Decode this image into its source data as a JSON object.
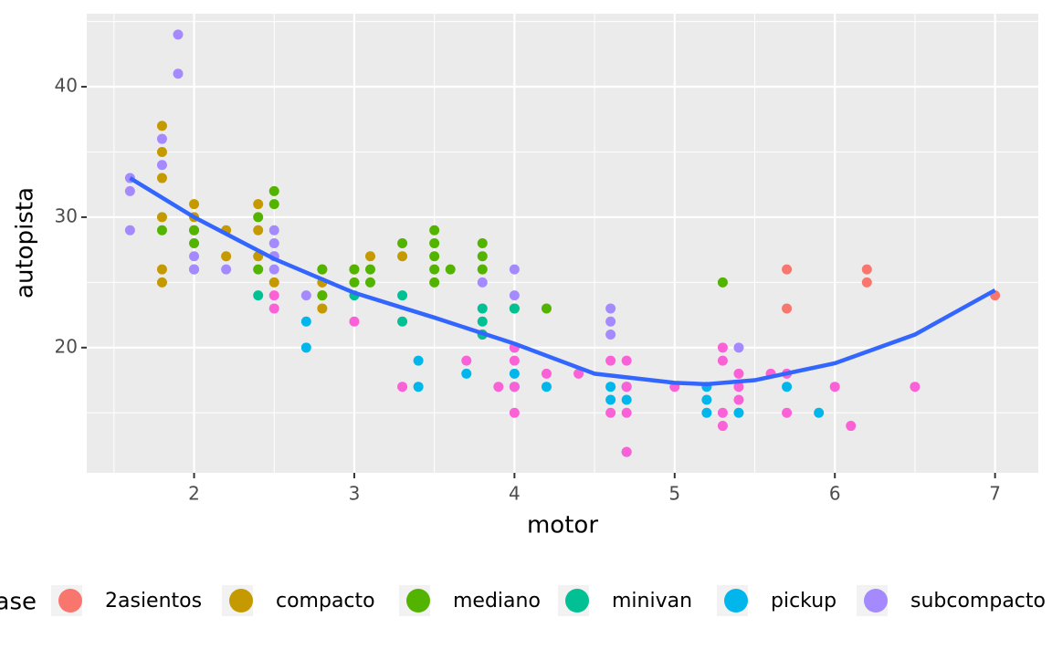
{
  "chart_data": {
    "type": "scatter",
    "x_label": "motor",
    "y_label": "autopista",
    "legend_title": "clase",
    "xlim": [
      1.33,
      7.27
    ],
    "ylim": [
      10.4,
      45.6
    ],
    "xticks": [
      2,
      3,
      4,
      5,
      6,
      7
    ],
    "yticks": [
      20,
      30,
      40
    ],
    "grid": true,
    "legend_position": "bottom",
    "series": [
      {
        "name": "2asientos",
        "color": "#F8766D",
        "x": [
          5.7,
          5.7,
          6.2,
          6.2,
          7.0
        ],
        "values": [
          26,
          23,
          26,
          25,
          24
        ]
      },
      {
        "name": "compacto",
        "color": "#C49A00",
        "x": [
          1.8,
          1.8,
          1.8,
          1.8,
          1.8,
          1.8,
          2.0,
          2.0,
          2.0,
          2.2,
          2.2,
          2.4,
          2.4,
          2.4,
          2.5,
          2.5,
          2.8,
          2.8,
          2.8,
          2.8,
          3.0,
          3.1,
          3.3
        ],
        "values": [
          37,
          35,
          33,
          30,
          26,
          25,
          31,
          30,
          29,
          29,
          27,
          31,
          29,
          27,
          27,
          25,
          26,
          25,
          24,
          23,
          26,
          27,
          27
        ]
      },
      {
        "name": "mediano",
        "color": "#53B400",
        "x": [
          1.8,
          2.0,
          2.0,
          2.0,
          2.4,
          2.4,
          2.5,
          2.5,
          2.8,
          2.8,
          3.0,
          3.0,
          3.1,
          3.1,
          3.3,
          3.5,
          3.5,
          3.5,
          3.5,
          3.5,
          3.6,
          3.8,
          3.8,
          3.8,
          3.8,
          4.0,
          4.2,
          5.3
        ],
        "values": [
          29,
          29,
          28,
          26,
          30,
          26,
          32,
          31,
          26,
          24,
          26,
          25,
          26,
          25,
          28,
          29,
          28,
          27,
          26,
          25,
          26,
          28,
          27,
          26,
          21,
          23,
          23,
          25
        ]
      },
      {
        "name": "minivan",
        "color": "#00C094",
        "x": [
          2.4,
          3.0,
          3.3,
          3.3,
          3.8,
          3.8,
          3.8,
          4.0
        ],
        "values": [
          24,
          24,
          24,
          22,
          23,
          22,
          21,
          23
        ]
      },
      {
        "name": "pickup",
        "color": "#00B6EB",
        "x": [
          2.7,
          2.7,
          3.4,
          3.4,
          3.7,
          4.0,
          4.0,
          4.0,
          4.2,
          4.6,
          4.6,
          4.7,
          4.7,
          4.7,
          5.2,
          5.2,
          5.2,
          5.4,
          5.7,
          5.9
        ],
        "values": [
          22,
          20,
          19,
          17,
          18,
          20,
          18,
          17,
          17,
          17,
          16,
          17,
          16,
          12,
          17,
          16,
          15,
          15,
          17,
          15
        ]
      },
      {
        "name": "subcompacto",
        "color": "#A58AFF",
        "x": [
          1.6,
          1.6,
          1.6,
          1.8,
          1.8,
          1.9,
          1.9,
          2.0,
          2.0,
          2.2,
          2.5,
          2.5,
          2.5,
          2.5,
          2.7,
          3.8,
          4.0,
          4.0,
          4.6,
          4.6,
          4.6,
          5.4
        ],
        "values": [
          33,
          32,
          29,
          36,
          34,
          44,
          41,
          27,
          26,
          26,
          29,
          28,
          27,
          26,
          24,
          25,
          26,
          24,
          23,
          22,
          21,
          20
        ]
      },
      {
        "color": "#FB61D7",
        "x": [
          2.5,
          2.5,
          3.0,
          3.3,
          3.7,
          3.9,
          4.0,
          4.0,
          4.0,
          4.0,
          4.2,
          4.4,
          4.6,
          4.6,
          4.7,
          4.7,
          4.7,
          4.7,
          5.0,
          5.3,
          5.3,
          5.3,
          5.3,
          5.4,
          5.4,
          5.4,
          5.6,
          5.7,
          5.7,
          6.0,
          6.1,
          6.5
        ],
        "values": [
          24,
          23,
          22,
          17,
          19,
          17,
          20,
          19,
          17,
          15,
          18,
          18,
          19,
          15,
          19,
          17,
          15,
          12,
          17,
          20,
          19,
          15,
          14,
          18,
          17,
          16,
          18,
          18,
          15,
          17,
          14,
          17
        ]
      }
    ],
    "smooth": {
      "color": "#3366FF",
      "x": [
        1.6,
        2.0,
        2.5,
        3.0,
        3.5,
        4.0,
        4.5,
        5.0,
        5.2,
        5.5,
        6.0,
        6.5,
        7.0
      ],
      "values": [
        33,
        30,
        26.8,
        24.2,
        22.3,
        20.3,
        18,
        17.3,
        17.2,
        17.5,
        18.8,
        21,
        24.4
      ]
    }
  }
}
